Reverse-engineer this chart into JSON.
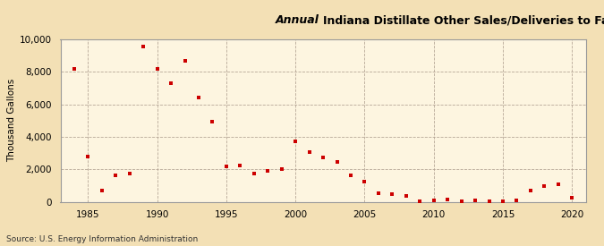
{
  "title_italic": "Annual ",
  "title_regular": "Indiana Distillate Other Sales/Deliveries to Farm Consumers",
  "ylabel": "Thousand Gallons",
  "source": "Source: U.S. Energy Information Administration",
  "background_color": "#f3e0b5",
  "plot_background_color": "#fdf5e0",
  "marker_color": "#cc0000",
  "xlim": [
    1983,
    2021
  ],
  "ylim": [
    0,
    10000
  ],
  "yticks": [
    0,
    2000,
    4000,
    6000,
    8000,
    10000
  ],
  "xticks": [
    1985,
    1990,
    1995,
    2000,
    2005,
    2010,
    2015,
    2020
  ],
  "years": [
    1984,
    1985,
    1986,
    1987,
    1988,
    1989,
    1990,
    1991,
    1992,
    1993,
    1994,
    1995,
    1996,
    1997,
    1998,
    1999,
    2000,
    2001,
    2002,
    2003,
    2004,
    2005,
    2006,
    2007,
    2008,
    2009,
    2010,
    2011,
    2012,
    2013,
    2014,
    2015,
    2016,
    2017,
    2018,
    2019,
    2020
  ],
  "values": [
    8200,
    2800,
    700,
    1650,
    1750,
    9550,
    8200,
    7300,
    8700,
    6400,
    4950,
    2200,
    2250,
    1750,
    1900,
    2000,
    3700,
    3050,
    2750,
    2450,
    1650,
    1250,
    500,
    450,
    350,
    50,
    100,
    150,
    50,
    100,
    50,
    50,
    100,
    700,
    950,
    1100,
    250
  ]
}
